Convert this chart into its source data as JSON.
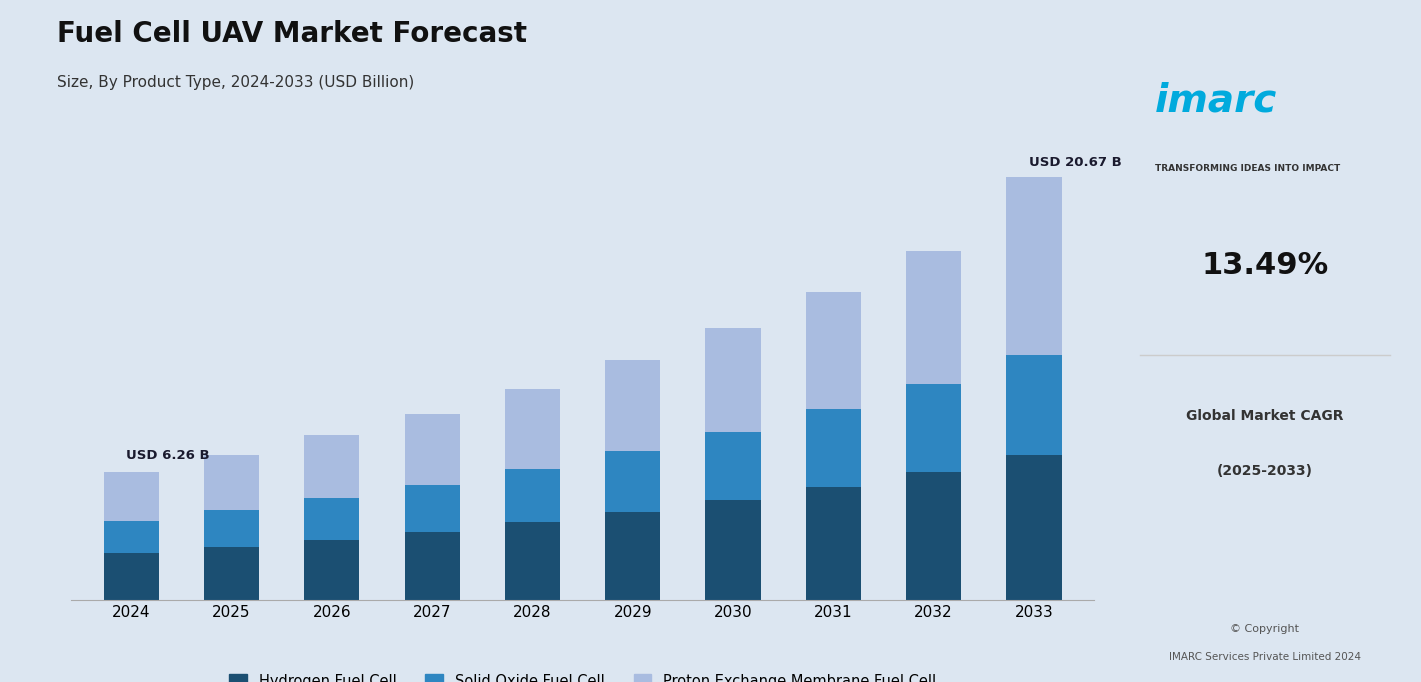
{
  "title": "Fuel Cell UAV Market Forecast",
  "subtitle": "Size, By Product Type, 2024-2033 (USD Billion)",
  "years": [
    2024,
    2025,
    2026,
    2027,
    2028,
    2029,
    2030,
    2031,
    2032,
    2033
  ],
  "hydrogen": [
    2.3,
    2.61,
    2.96,
    3.35,
    3.8,
    4.31,
    4.88,
    5.53,
    6.27,
    7.1
  ],
  "solid_oxide": [
    1.58,
    1.79,
    2.03,
    2.3,
    2.61,
    2.96,
    3.35,
    3.8,
    4.31,
    4.88
  ],
  "proton_exchange": [
    2.38,
    2.7,
    3.06,
    3.47,
    3.93,
    4.46,
    5.05,
    5.73,
    6.49,
    8.69
  ],
  "first_label": "USD 6.26 B",
  "last_label": "USD 20.67 B",
  "color_hydrogen": "#1b4f72",
  "color_solid_oxide": "#2e86c1",
  "color_proton": "#a9bce0",
  "bg_color": "#dce6f1",
  "legend_hydrogen": "Hydrogen Fuel Cell",
  "legend_solid_oxide": "Solid Oxide Fuel Cell",
  "legend_proton": "Proton Exchange Membrane Fuel Cell"
}
